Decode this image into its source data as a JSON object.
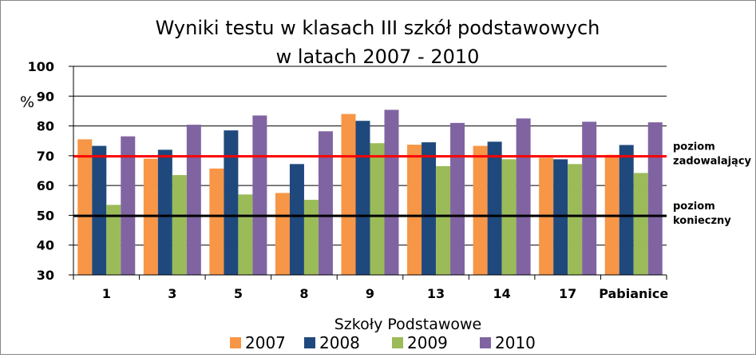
{
  "chart_data": {
    "type": "bar",
    "title_line1": "Wyniki testu w klasach III szkół podstawowych",
    "title_line2": "w latach 2007 - 2010",
    "xlabel": "Szkoły Podstawowe",
    "ylabel": "%",
    "ylim": [
      30,
      100
    ],
    "yticks": [
      30,
      40,
      50,
      60,
      70,
      80,
      90,
      100
    ],
    "grid": true,
    "legend_position": "bottom",
    "categories": [
      "1",
      "3",
      "5",
      "8",
      "9",
      "13",
      "14",
      "17",
      "Pabianice"
    ],
    "series": [
      {
        "name": "2007",
        "color": "#F79646",
        "values": [
          75.5,
          69.0,
          65.7,
          57.5,
          84.0,
          73.7,
          73.3,
          69.3,
          70.3
        ]
      },
      {
        "name": "2008",
        "color": "#1F497D",
        "values": [
          73.3,
          72.0,
          78.5,
          67.2,
          81.7,
          74.5,
          74.7,
          68.8,
          73.6
        ]
      },
      {
        "name": "2009",
        "color": "#9BBB59",
        "values": [
          53.5,
          63.5,
          57.0,
          55.2,
          74.2,
          66.5,
          68.8,
          67.2,
          64.2
        ]
      },
      {
        "name": "2010",
        "color": "#8064A2",
        "values": [
          76.5,
          80.4,
          83.5,
          78.2,
          85.4,
          81.0,
          82.5,
          81.4,
          81.2
        ]
      }
    ],
    "reference_lines": [
      {
        "value": 69.8,
        "color": "#FF0000",
        "label_line1": "poziom",
        "label_line2": "zadowalający"
      },
      {
        "value": 49.8,
        "color": "#000000",
        "label_line1": "poziom",
        "label_line2": "konieczny"
      }
    ]
  }
}
